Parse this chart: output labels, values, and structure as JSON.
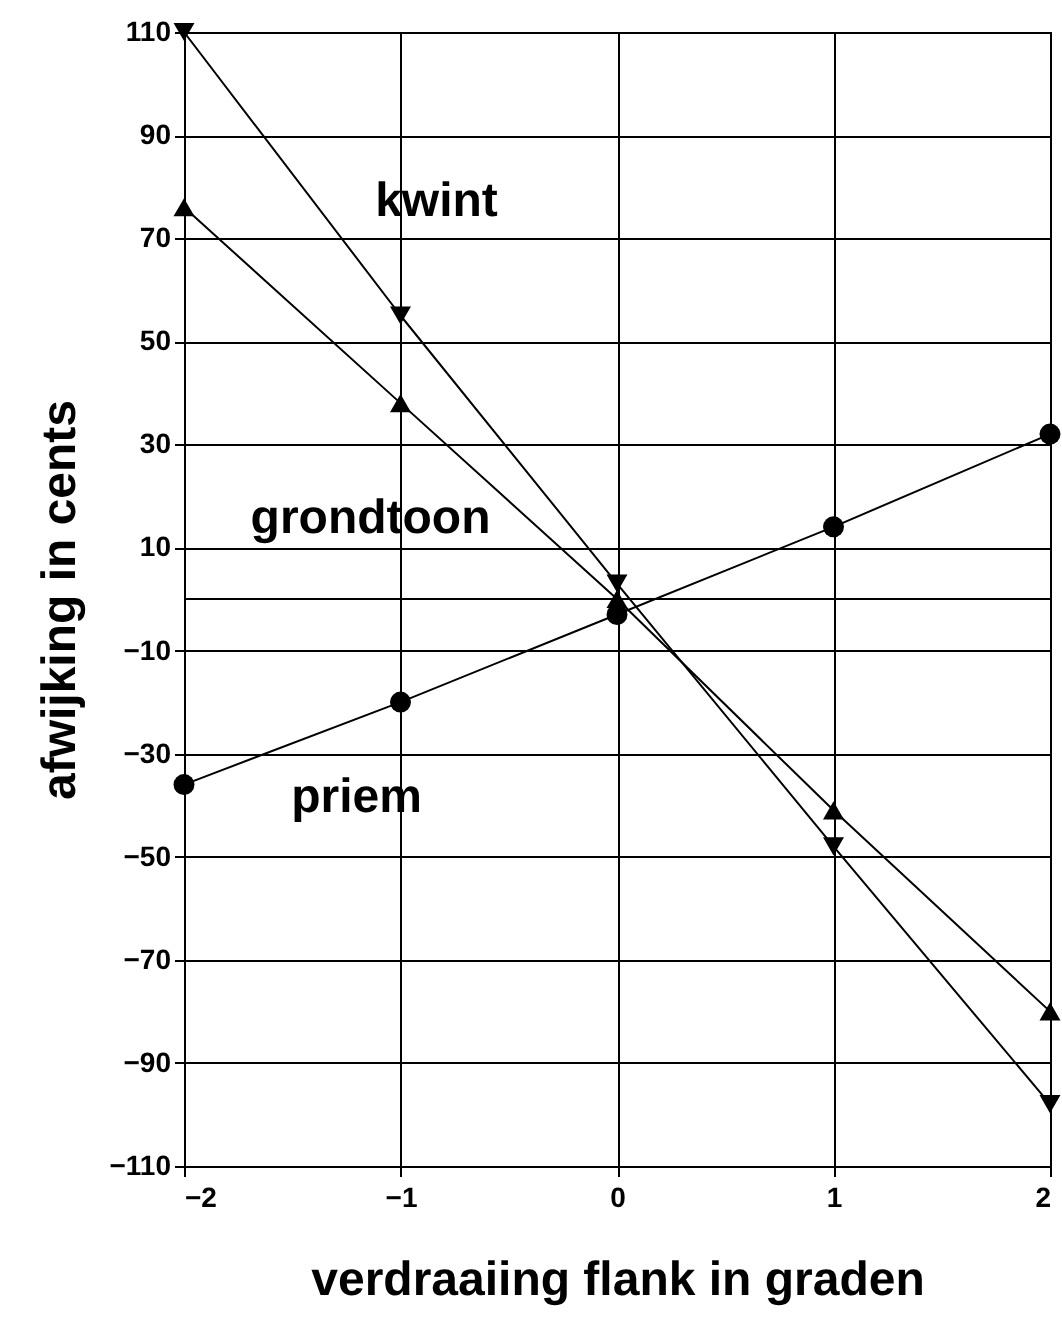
{
  "chart_data": {
    "type": "line",
    "xlabel": "verdraaiing flank in graden",
    "ylabel": "afwijking in cents",
    "x": [
      -2,
      -1,
      0,
      1,
      2
    ],
    "series": [
      {
        "name": "kwint",
        "color": "#000000",
        "marker": "triangle-down",
        "values": [
          110,
          55,
          3,
          -48,
          -98
        ]
      },
      {
        "name": "grondtoon",
        "color": "#000000",
        "marker": "triangle",
        "values": [
          76,
          38,
          0,
          -41,
          -80
        ]
      },
      {
        "name": "priem",
        "color": "#000000",
        "marker": "circle",
        "values": [
          -36,
          -20,
          -3,
          14,
          32
        ]
      }
    ],
    "xlim": [
      -2,
      2
    ],
    "xticks": [
      -2,
      -1,
      0,
      1,
      2
    ],
    "ylim": [
      -110,
      110
    ],
    "yticks": [
      -110,
      -90,
      -70,
      -50,
      -30,
      -10,
      10,
      30,
      50,
      70,
      90,
      110
    ],
    "ref_lines": [
      {
        "axis": "y",
        "value": 0,
        "color": "#000000"
      }
    ],
    "grid": true
  }
}
